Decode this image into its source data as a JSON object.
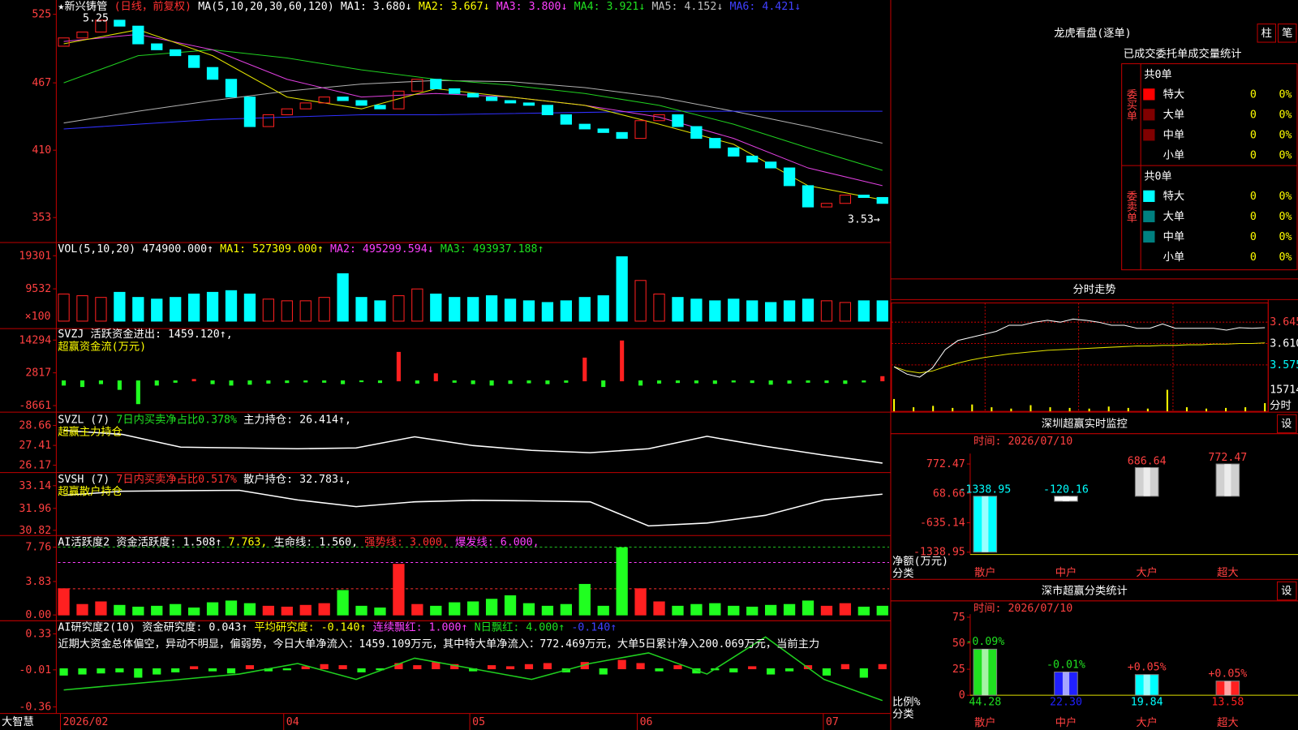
{
  "main": {
    "header": [
      {
        "text": "★新兴铸管",
        "color": "#ffffff"
      },
      {
        "text": "(日线，前复权)",
        "color": "#ff3030"
      },
      {
        "text": "MA(5,10,20,30,60,120)",
        "color": "#ffffff"
      },
      {
        "text": "MA1: 3.680↓",
        "color": "#ffffff"
      },
      {
        "text": "MA2: 3.667↓",
        "color": "#ffff00"
      },
      {
        "text": "MA3: 3.800↓",
        "color": "#ff40ff"
      },
      {
        "text": "MA4: 3.921↓",
        "color": "#20e020"
      },
      {
        "text": "MA5: 4.152↓",
        "color": "#c0c0c0"
      },
      {
        "text": "MA6: 4.421↓",
        "color": "#4040ff"
      }
    ],
    "price": {
      "ylim": [
        334,
        535
      ],
      "yticks": [
        525,
        467,
        410,
        353
      ],
      "high_label": "5.25",
      "low_label": "3.53→",
      "up_color": "#ff2020",
      "down_color": "#00ffff",
      "open": [
        498,
        505,
        510,
        520,
        515,
        500,
        495,
        490,
        480,
        470,
        455,
        430,
        440,
        445,
        450,
        455,
        452,
        448,
        445,
        460,
        470,
        462,
        458,
        455,
        452,
        450,
        448,
        440,
        432,
        428,
        425,
        420,
        435,
        440,
        430,
        420,
        412,
        405,
        400,
        395,
        380,
        362,
        365,
        372,
        370
      ],
      "close": [
        505,
        510,
        520,
        515,
        500,
        495,
        490,
        480,
        470,
        455,
        430,
        440,
        445,
        450,
        455,
        452,
        448,
        445,
        460,
        470,
        462,
        458,
        455,
        452,
        450,
        448,
        440,
        432,
        428,
        425,
        420,
        435,
        440,
        430,
        420,
        412,
        405,
        400,
        395,
        380,
        362,
        365,
        372,
        370,
        365
      ],
      "ma_lines": [
        {
          "color": "#b0b0b0",
          "values": [
            433,
            443,
            452,
            460,
            466,
            469,
            468,
            463,
            455,
            443,
            430,
            416
          ]
        },
        {
          "color": "#3030ff",
          "values": [
            428,
            432,
            436,
            438,
            440,
            440,
            441,
            442,
            443,
            443,
            443,
            443
          ]
        },
        {
          "color": "#20d020",
          "values": [
            467,
            490,
            495,
            488,
            478,
            470,
            465,
            458,
            448,
            432,
            412,
            393
          ]
        },
        {
          "color": "#e040e0",
          "values": [
            502,
            508,
            495,
            470,
            455,
            458,
            455,
            448,
            438,
            420,
            395,
            380
          ]
        },
        {
          "color": "#e0e000",
          "values": [
            500,
            512,
            490,
            455,
            445,
            462,
            455,
            448,
            432,
            415,
            380,
            368
          ]
        }
      ]
    },
    "panels": [
      {
        "header": [
          {
            "text": "VOL(5,10,20)",
            "color": "#ffffff"
          },
          {
            "text": "474900.000↑",
            "color": "#ffffff"
          },
          {
            "text": "MA1: 527309.000↑",
            "color": "#ffff00"
          },
          {
            "text": "MA2: 495299.594↓",
            "color": "#ff40ff"
          },
          {
            "text": "MA3: 493937.188↑",
            "color": "#20e020"
          }
        ],
        "unit_label": "×100",
        "ylim": [
          0,
          22470
        ],
        "yticks": [
          19301,
          9532
        ],
        "bars": {
          "rule": "candle",
          "hollow_up": true,
          "up_color": "#ff2020",
          "down_color": "#00ffff",
          "values": [
            8000,
            7500,
            7000,
            8500,
            7000,
            6500,
            7000,
            8000,
            8500,
            9000,
            8000,
            6500,
            6000,
            6000,
            7000,
            14000,
            7000,
            6000,
            7500,
            9500,
            8000,
            7000,
            7000,
            7500,
            6500,
            6000,
            5500,
            6000,
            7000,
            7500,
            19000,
            12000,
            8000,
            7000,
            6500,
            6000,
            6500,
            6000,
            5500,
            6000,
            6500,
            6000,
            5500,
            6000,
            6000
          ]
        }
      },
      {
        "header": [
          {
            "text": "SVZJ",
            "color": "#ffffff"
          },
          {
            "text": "活跃资金进出: 1459.120↑,",
            "color": "#ffffff"
          }
        ],
        "note": {
          "text": "超赢资金流(万元)",
          "color": "#ffff00"
        },
        "ylim": [
          -10100,
          17450
        ],
        "yticks": [
          14294,
          2817,
          -8661
        ],
        "bars": {
          "rule": "sign",
          "hollow_up": false,
          "up_color": "#ff2020",
          "down_color": "#20ff20",
          "values": [
            -1500,
            -2000,
            -1000,
            -3000,
            -8000,
            -1500,
            -500,
            500,
            -1000,
            -1500,
            -1200,
            -800,
            -600,
            -400,
            -500,
            -1000,
            -300,
            -600,
            10000,
            -800,
            2500,
            -500,
            -1000,
            -1500,
            -900,
            -700,
            -1000,
            -500,
            8000,
            -2000,
            14000,
            -1500,
            -800,
            -600,
            -700,
            -900,
            -400,
            -600,
            -1200,
            -800,
            -500,
            -600,
            -900,
            -400,
            1500
          ]
        }
      },
      {
        "header": [
          {
            "text": "SVZL (7)",
            "color": "#ffffff"
          },
          {
            "text": "7日内买卖净占比0.378%",
            "color": "#20e020"
          },
          {
            "text": "主力持仓: 26.414↑,",
            "color": "#ffffff"
          }
        ],
        "note": {
          "text": "超赢主力持仓",
          "color": "#ffff00"
        },
        "ylim": [
          25.86,
          29.39
        ],
        "yticks": [
          28.66,
          27.41,
          26.17
        ],
        "lines": [
          {
            "color": "#ffffff",
            "values": [
              28.35,
              28.1,
              27.3,
              27.25,
              27.2,
              27.25,
              27.95,
              27.4,
              27.1,
              26.95,
              27.2,
              27.98,
              27.35,
              26.8,
              26.3
            ]
          }
        ]
      },
      {
        "header": [
          {
            "text": "SVSH (7)",
            "color": "#ffffff"
          },
          {
            "text": "7日内买卖净占比0.517%",
            "color": "#ff3030"
          },
          {
            "text": "散户持仓: 32.783↓,",
            "color": "#ffffff"
          }
        ],
        "note": {
          "text": "超赢散户持仓",
          "color": "#ffff00"
        },
        "ylim": [
          30.68,
          33.69
        ],
        "yticks": [
          33.14,
          31.96,
          30.82
        ],
        "lines": [
          {
            "color": "#ffffff",
            "values": [
              32.64,
              32.85,
              32.88,
              32.9,
              32.4,
              32.05,
              32.3,
              32.38,
              32.35,
              32.3,
              31.05,
              31.2,
              31.6,
              32.4,
              32.7
            ]
          }
        ]
      },
      {
        "header": [
          {
            "text": "AI活跃度2",
            "color": "#ffffff"
          },
          {
            "text": "资金活跃度: 1.508↑",
            "color": "#ffffff"
          },
          {
            "text": "7.763,",
            "color": "#ffff00"
          },
          {
            "text": "生命线: 1.560,",
            "color": "#ffffff"
          },
          {
            "text": "强势线: 3.000,",
            "color": "#ff3030"
          },
          {
            "text": "爆发线: 6.000,",
            "color": "#ff40ff"
          }
        ],
        "ylim": [
          -0.19,
          8.81
        ],
        "yticks": [
          7.76,
          3.83,
          {
            "value": 0,
            "label": "0.00"
          }
        ],
        "levels": [
          {
            "value": 3,
            "color": "#ff3030"
          },
          {
            "value": 6,
            "color": "#ff40ff"
          },
          {
            "value": 7.763,
            "color": "#20c020"
          }
        ],
        "bars": {
          "rule": "candle",
          "hollow_up": false,
          "up_color": "#ff2020",
          "down_color": "#20ff20",
          "values": [
            3.0,
            1.2,
            1.5,
            1.1,
            0.9,
            1.0,
            1.2,
            0.8,
            1.4,
            1.6,
            1.3,
            1.0,
            0.9,
            1.1,
            1.3,
            2.8,
            1.0,
            0.8,
            5.8,
            1.2,
            1.0,
            1.4,
            1.5,
            1.8,
            2.2,
            1.3,
            1.0,
            1.2,
            3.5,
            1.0,
            7.7,
            3.0,
            1.5,
            1.0,
            1.2,
            1.3,
            1.0,
            0.9,
            1.1,
            1.2,
            1.6,
            1.0,
            1.3,
            0.9,
            1.0
          ]
        }
      },
      {
        "header": [
          {
            "text": "AI研究度2(10)",
            "color": "#ffffff"
          },
          {
            "text": "资金研究度: 0.043↑",
            "color": "#ffffff"
          },
          {
            "text": "平均研究度: -0.140↑",
            "color": "#ffff00"
          },
          {
            "text": "连续飘红: 1.000↑",
            "color": "#ff40ff"
          },
          {
            "text": "N日飘红: 4.000↑",
            "color": "#20e020"
          },
          {
            "text": "-0.140↑",
            "color": "#4040ff"
          }
        ],
        "note": {
          "text": "近期大资金总体偏空，异动不明显，偏弱势，今日大单净流入：1459.109万元，其中特大单净流入：772.469万元，大单5日累计净入200.069万元，当前主力",
          "color": "#ffffff"
        },
        "ylim": [
          -0.406,
          0.43
        ],
        "yticks": [
          0.33,
          -0.01,
          -0.36
        ],
        "bars": {
          "rule": "sign",
          "hollow_up": false,
          "up_color": "#ff2020",
          "down_color": "#20ff20",
          "values": [
            -0.06,
            -0.05,
            -0.04,
            -0.03,
            -0.08,
            -0.05,
            -0.03,
            0.02,
            -0.02,
            -0.04,
            0.03,
            -0.02,
            -0.01,
            0.02,
            0.04,
            0.03,
            -0.03,
            -0.01,
            0.05,
            0.03,
            0.06,
            0.04,
            -0.02,
            0.03,
            0.02,
            0.04,
            0.05,
            -0.03,
            0.06,
            -0.05,
            0.08,
            0.05,
            -0.02,
            0.03,
            -0.04,
            -0.01,
            -0.03,
            0.02,
            -0.05,
            -0.02,
            0.03,
            -0.06,
            0.04,
            -0.08,
            0.04
          ]
        },
        "lines": [
          {
            "color": "#20d020",
            "values": [
              -0.2,
              -0.15,
              -0.1,
              -0.05,
              0.05,
              -0.1,
              0.1,
              0.0,
              -0.1,
              0.05,
              0.15,
              -0.05,
              0.3,
              -0.1,
              -0.3
            ]
          }
        ]
      }
    ],
    "logo": "大智慧",
    "date_ticks": [
      {
        "value": 0,
        "label": "2026/02"
      },
      {
        "value": 12,
        "label": "04"
      },
      {
        "value": 22,
        "label": "05"
      },
      {
        "value": 31,
        "label": "06"
      },
      {
        "value": 41,
        "label": "07"
      }
    ]
  },
  "dragon": {
    "title": "龙虎看盘(逐单)",
    "buttons": [
      "柱",
      "笔"
    ],
    "subtitle": "已成交委托单成交量统计",
    "groups": [
      {
        "label": "委买单",
        "total": "共0单",
        "rows": [
          {
            "name": "特大",
            "color": "#ff0000",
            "count": "0",
            "pct": "0%"
          },
          {
            "name": "大单",
            "color": "#800000",
            "count": "0",
            "pct": "0%"
          },
          {
            "name": "中单",
            "color": "#800000",
            "count": "0",
            "pct": "0%"
          },
          {
            "name": "小单",
            "count": "0",
            "pct": "0%"
          }
        ]
      },
      {
        "label": "委卖单",
        "total": "共0单",
        "rows": [
          {
            "name": "特大",
            "color": "#00ffff",
            "count": "0",
            "pct": "0%"
          },
          {
            "name": "大单",
            "color": "#008080",
            "count": "0",
            "pct": "0%"
          },
          {
            "name": "中单",
            "color": "#008080",
            "count": "0",
            "pct": "0%"
          },
          {
            "name": "小单",
            "count": "0",
            "pct": "0%"
          }
        ]
      }
    ]
  },
  "intraday": {
    "title": "分时走势",
    "ylim": [
      3.541,
      3.6765
    ],
    "yticks": [
      3.645,
      {
        "value": 3.61,
        "label": "3.610"
      },
      3.575
    ],
    "price": [
      3.572,
      3.56,
      3.555,
      3.57,
      3.6,
      3.615,
      3.62,
      3.625,
      3.63,
      3.64,
      3.64,
      3.645,
      3.648,
      3.645,
      3.65,
      3.648,
      3.645,
      3.64,
      3.64,
      3.635,
      3.635,
      3.642,
      3.635,
      3.635,
      3.635,
      3.635,
      3.632,
      3.636,
      3.635,
      3.636
    ],
    "average": [
      3.572,
      3.565,
      3.562,
      3.565,
      3.572,
      3.578,
      3.583,
      3.587,
      3.59,
      3.593,
      3.595,
      3.597,
      3.599,
      3.6,
      3.601,
      3.602,
      3.603,
      3.604,
      3.605,
      3.606,
      3.606,
      3.607,
      3.607,
      3.608,
      3.608,
      3.609,
      3.609,
      3.61,
      3.61,
      3.611
    ],
    "volume_ylim": [
      0,
      17500
    ],
    "volume_ticks": [
      15714
    ],
    "volume": [
      9000,
      3000,
      4000,
      2500,
      5000,
      3000,
      2000,
      4500,
      3000,
      2500,
      2000,
      3500,
      2500,
      2000,
      15714,
      3000,
      2000,
      2500,
      3000,
      6000
    ],
    "label": "分时"
  },
  "monitor": {
    "title": "深圳超赢实时监控",
    "button": "设",
    "time": "时间: 2026/07/10",
    "ylim": [
      -1396,
      1022
    ],
    "yticks": [
      772.47,
      68.66,
      -635.14,
      -1338.95
    ],
    "axis_label": "净额(万元)",
    "category_label": "分类",
    "categories": [
      "散户",
      "中户",
      "大户",
      "超大"
    ],
    "values": [
      -1338.95,
      -120.16,
      686.64,
      772.47
    ],
    "colors": [
      "#00ffff",
      "#ffffff",
      "#d0d0d0",
      "#d0d0d0"
    ]
  },
  "stats": {
    "title": "深市超赢分类统计",
    "button": "设",
    "time": "时间: 2026/07/10",
    "ylim": [
      0,
      78
    ],
    "yticks": [
      75,
      50,
      25,
      0
    ],
    "axis_label": "比例%",
    "category_label": "分类",
    "categories": [
      "散户",
      "中户",
      "大户",
      "超大"
    ],
    "values": [
      44.28,
      22.3,
      19.84,
      13.58
    ],
    "value_labels": [
      "44.28",
      "22.30",
      "19.84",
      "13.58"
    ],
    "changes": [
      "-0.09%",
      "-0.01%",
      "+0.05%",
      "+0.05%"
    ],
    "colors": [
      "#20e020",
      "#2020ff",
      "#00ffff",
      "#ff2020"
    ]
  }
}
